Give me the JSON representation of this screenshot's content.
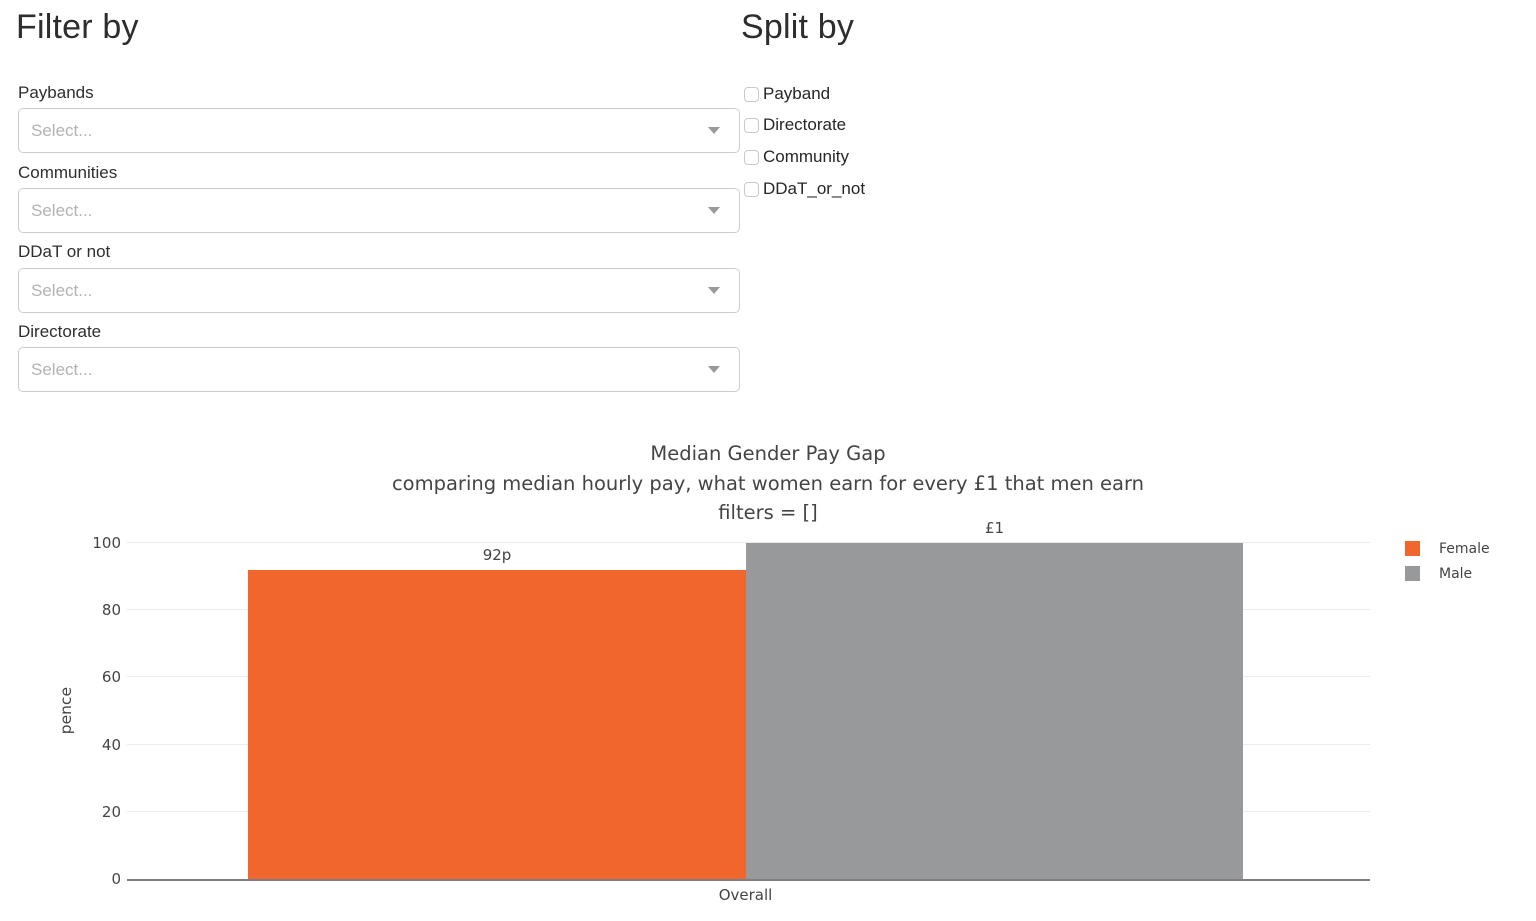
{
  "filter_section": {
    "title": "Filter by",
    "filters": [
      {
        "label": "Paybands",
        "placeholder": "Select..."
      },
      {
        "label": "Communities",
        "placeholder": "Select..."
      },
      {
        "label": "DDaT or not",
        "placeholder": "Select..."
      },
      {
        "label": "Directorate",
        "placeholder": "Select..."
      }
    ]
  },
  "split_section": {
    "title": "Split by",
    "options": [
      {
        "label": "Payband",
        "checked": false
      },
      {
        "label": "Directorate",
        "checked": false
      },
      {
        "label": "Community",
        "checked": false
      },
      {
        "label": "DDaT_or_not",
        "checked": false
      }
    ]
  },
  "chart_data": {
    "type": "bar",
    "title": "Median Gender Pay Gap",
    "subtitle": "comparing median hourly pay, what women earn for every £1 that men earn",
    "filters_line": "filters = []",
    "categories": [
      "Overall"
    ],
    "series": [
      {
        "name": "Female",
        "values": [
          92
        ],
        "label": "92p",
        "color": "#F1662D"
      },
      {
        "name": "Male",
        "values": [
          100
        ],
        "label": "£1",
        "color": "#98999B"
      }
    ],
    "xlabel": "",
    "ylabel": "pence",
    "ylim": [
      0,
      100
    ],
    "yticks": [
      0,
      20,
      40,
      60,
      80,
      100
    ],
    "grid": true,
    "legend_position": "right",
    "colors": {
      "grid": "#EBEBEB",
      "axis": "#7F7F7F",
      "text": "#444444"
    }
  }
}
